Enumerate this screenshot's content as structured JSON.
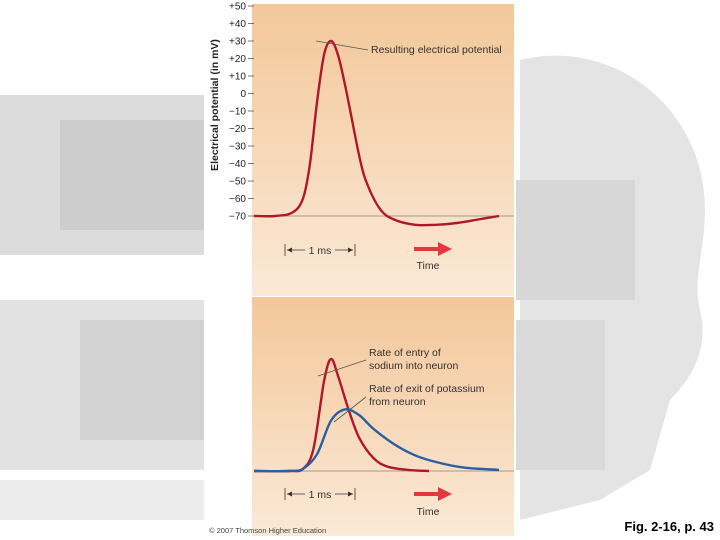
{
  "caption": "Fig. 2-16, p. 43",
  "copyright": "© 2007 Thomson Higher Education",
  "colors": {
    "panel_top": "#f3c79a",
    "panel_bottom": "#fbe9d6",
    "potential_line": "#b0182a",
    "sodium_line": "#b0182a",
    "potassium_line": "#2a5fa8",
    "arrow": "#e8363f"
  },
  "chart_data": [
    {
      "type": "line",
      "title": "",
      "xlabel": "Time",
      "ylabel": "Electrical potential (in mV)",
      "ylim": [
        -70,
        50
      ],
      "y_ticks": [
        "+50",
        "+40",
        "+30",
        "+20",
        "+10",
        "0",
        "−10",
        "−20",
        "−30",
        "−40",
        "−50",
        "−60",
        "−70"
      ],
      "y_tick_values": [
        50,
        40,
        30,
        20,
        10,
        0,
        -10,
        -20,
        -30,
        -40,
        -50,
        -60,
        -70
      ],
      "scale_bar": "1 ms",
      "annotation": "Resulting electrical potential",
      "grid": false,
      "series": [
        {
          "name": "",
          "x": [
            0,
            0.3,
            0.55,
            0.7,
            0.8,
            0.9,
            1.0,
            1.1,
            1.2,
            1.3,
            1.4,
            1.5,
            1.6,
            1.8,
            2.0,
            2.3,
            2.6,
            2.9,
            3.2,
            3.5
          ],
          "y": [
            -70,
            -70,
            -68,
            -60,
            -40,
            -5,
            22,
            30,
            22,
            5,
            -15,
            -35,
            -50,
            -66,
            -72,
            -75,
            -75,
            -74,
            -72,
            -70
          ]
        }
      ]
    },
    {
      "type": "line",
      "xlabel": "Time",
      "scale_bar": "1 ms",
      "grid": false,
      "series": [
        {
          "name": "Rate of entry of sodium into neuron",
          "x": [
            0,
            0.5,
            0.7,
            0.85,
            1.0,
            1.1,
            1.2,
            1.35,
            1.5,
            1.7,
            1.9,
            2.2,
            2.5
          ],
          "y": [
            0,
            0,
            0.02,
            0.2,
            0.8,
            1.0,
            0.85,
            0.55,
            0.3,
            0.12,
            0.04,
            0.01,
            0
          ]
        },
        {
          "name": "Rate of exit of potassium from neuron",
          "x": [
            0,
            0.5,
            0.7,
            0.9,
            1.1,
            1.3,
            1.5,
            1.7,
            2.0,
            2.3,
            2.6,
            3.0,
            3.5
          ],
          "y": [
            0,
            0,
            0.02,
            0.15,
            0.45,
            0.55,
            0.5,
            0.38,
            0.24,
            0.14,
            0.08,
            0.03,
            0.01
          ]
        }
      ],
      "annotation_sodium": [
        "Rate of entry of",
        "sodium into neuron"
      ],
      "annotation_potassium": [
        "Rate of exit of potassium",
        "from neuron"
      ]
    }
  ]
}
